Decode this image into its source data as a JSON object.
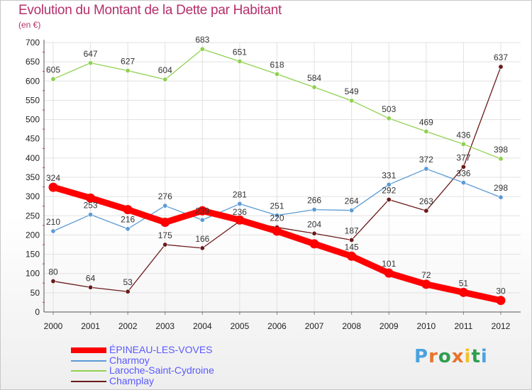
{
  "chart_data": {
    "type": "line",
    "title": "Evolution du Montant de la Dette par Habitant",
    "subtitle": "(en €)",
    "x": [
      "2000",
      "2001",
      "2002",
      "2003",
      "2004",
      "2005",
      "2006",
      "2007",
      "2008",
      "2009",
      "2010",
      "2011",
      "2012"
    ],
    "ylim": [
      0,
      700
    ],
    "yticks": [
      0,
      50,
      100,
      150,
      200,
      250,
      300,
      350,
      400,
      450,
      500,
      550,
      600,
      650,
      700
    ],
    "grid": true,
    "legend_position": "bottom-left",
    "series": [
      {
        "name": "ÉPINEAU-LES-VOVES",
        "color": "#ff0000",
        "values": [
          324,
          296,
          266,
          233,
          263,
          239,
          210,
          177,
          145,
          101,
          72,
          51,
          30
        ],
        "labels": [
          "324",
          "",
          "",
          "",
          "",
          "",
          "",
          "",
          "145",
          "101",
          "72",
          "51",
          "30"
        ]
      },
      {
        "name": "Charmoy",
        "color": "#5b9bd5",
        "values": [
          210,
          253,
          216,
          276,
          239,
          281,
          251,
          266,
          264,
          331,
          372,
          336,
          298
        ],
        "labels": [
          "210",
          "253",
          "216",
          "276",
          "239",
          "281",
          "251",
          "266",
          "264",
          "331",
          "372",
          "336",
          "298"
        ]
      },
      {
        "name": "Laroche-Saint-Cydroine",
        "color": "#8fd14f",
        "values": [
          605,
          647,
          627,
          604,
          683,
          651,
          618,
          584,
          549,
          503,
          469,
          436,
          398
        ],
        "labels": [
          "605",
          "647",
          "627",
          "604",
          "683",
          "651",
          "618",
          "584",
          "549",
          "503",
          "469",
          "436",
          "398"
        ]
      },
      {
        "name": "Champlay",
        "color": "#6b1a1a",
        "values": [
          80,
          64,
          53,
          175,
          166,
          236,
          220,
          204,
          187,
          292,
          263,
          377,
          637
        ],
        "labels": [
          "80",
          "64",
          "53",
          "175",
          "166",
          "236",
          "220",
          "204",
          "187",
          "292",
          "263",
          "377",
          "637"
        ]
      }
    ]
  },
  "brand": {
    "letters": [
      "P",
      "r",
      "o",
      "x",
      "i",
      "t",
      "i"
    ],
    "colors": [
      "#4aa3df",
      "#e8742a",
      "#2e9e4f",
      "#e8742a",
      "#f2c12e",
      "#2e9e4f",
      "#4aa3df"
    ]
  }
}
